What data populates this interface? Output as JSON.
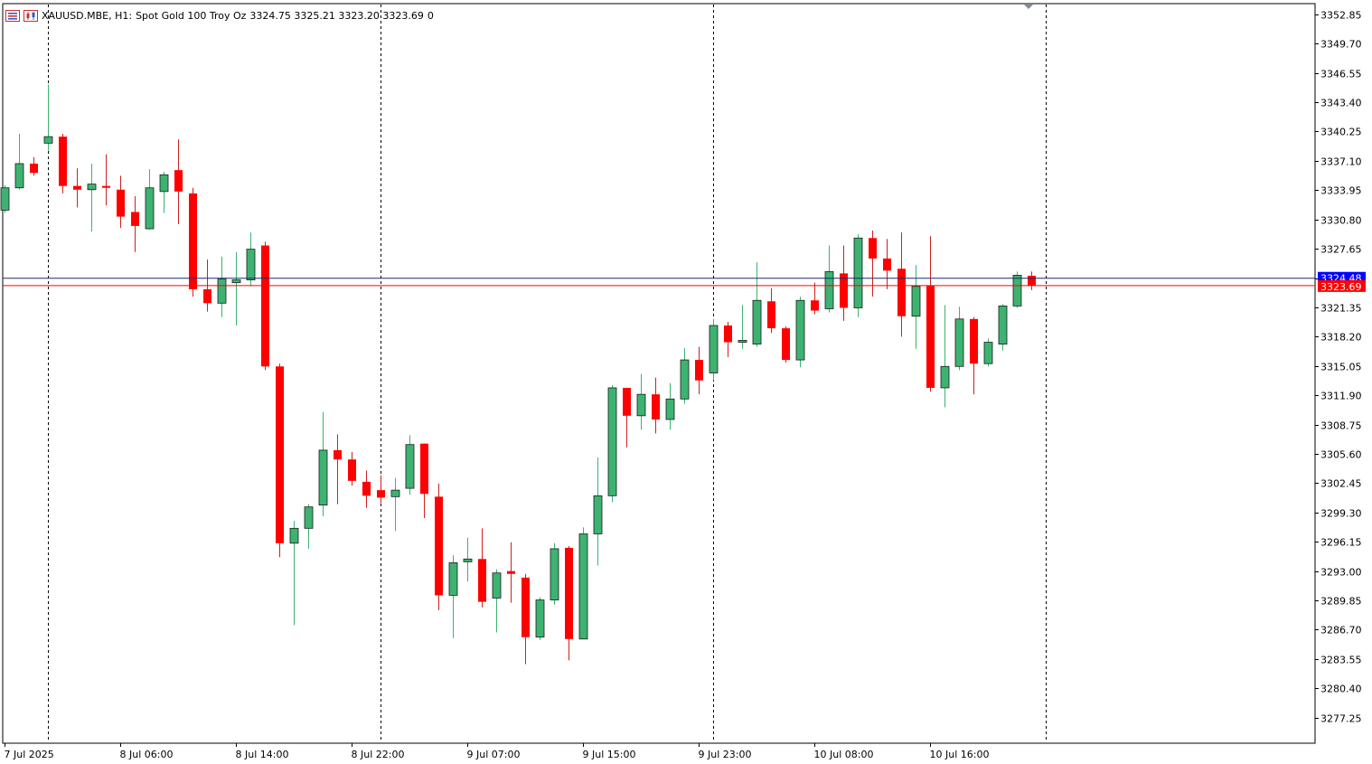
{
  "header": {
    "symbol": "XAUUSD.MBE, H1:",
    "description": "Spot Gold 100 Troy Oz",
    "ohlc": "3324.75 3325.21 3323.20 3323.69",
    "volume": "0"
  },
  "colors": {
    "bull": "#3cb371",
    "bear": "#ff0000",
    "bull_wick": "#3cb371",
    "bear_wick": "#d11f1f",
    "ask_line": "#1a2a6a",
    "bid_line": "#ff0000",
    "ask_tag": "#0000ff",
    "bid_tag": "#ff0000"
  },
  "chart_data": {
    "type": "candlestick",
    "y_axis": {
      "min": 3274.5,
      "max": 3354.0,
      "ticks": [
        "3352.85",
        "3349.70",
        "3346.55",
        "3343.40",
        "3340.25",
        "3337.10",
        "3333.95",
        "3330.80",
        "3327.65",
        "3324.50",
        "3321.35",
        "3318.20",
        "3315.05",
        "3311.90",
        "3308.75",
        "3305.60",
        "3302.45",
        "3299.30",
        "3296.15",
        "3293.00",
        "3289.85",
        "3286.70",
        "3283.55",
        "3280.40",
        "3277.25"
      ]
    },
    "x_axis": {
      "labels": [
        {
          "text": "7 Jul 2025",
          "index": 0
        },
        {
          "text": "8 Jul 06:00",
          "index": 8
        },
        {
          "text": "8 Jul 14:00",
          "index": 16
        },
        {
          "text": "8 Jul 22:00",
          "index": 24
        },
        {
          "text": "9 Jul 07:00",
          "index": 32
        },
        {
          "text": "9 Jul 15:00",
          "index": 40
        },
        {
          "text": "9 Jul 23:00",
          "index": 48
        },
        {
          "text": "10 Jul 08:00",
          "index": 56
        },
        {
          "text": "10 Jul 16:00",
          "index": 64
        }
      ],
      "period_separators": [
        3,
        26,
        49,
        72
      ]
    },
    "bid_price": "3323.69",
    "ask_price": "3324.48",
    "candles": [
      {
        "o": 3331.8,
        "h": 3334.5,
        "l": 3331.5,
        "c": 3334.2
      },
      {
        "o": 3334.2,
        "h": 3340.0,
        "l": 3334.0,
        "c": 3336.8
      },
      {
        "o": 3336.8,
        "h": 3337.5,
        "l": 3335.5,
        "c": 3335.8
      },
      {
        "o": 3339.0,
        "h": 3345.3,
        "l": 3338.2,
        "c": 3339.7
      },
      {
        "o": 3339.7,
        "h": 3340.0,
        "l": 3333.6,
        "c": 3334.4
      },
      {
        "o": 3334.4,
        "h": 3336.3,
        "l": 3332.1,
        "c": 3334.0
      },
      {
        "o": 3334.0,
        "h": 3336.8,
        "l": 3329.5,
        "c": 3334.6
      },
      {
        "o": 3334.4,
        "h": 3337.8,
        "l": 3332.3,
        "c": 3334.2
      },
      {
        "o": 3334.0,
        "h": 3335.5,
        "l": 3329.9,
        "c": 3331.1
      },
      {
        "o": 3331.6,
        "h": 3333.3,
        "l": 3327.3,
        "c": 3330.1
      },
      {
        "o": 3329.8,
        "h": 3336.2,
        "l": 3329.7,
        "c": 3334.2
      },
      {
        "o": 3333.8,
        "h": 3335.9,
        "l": 3331.5,
        "c": 3335.6
      },
      {
        "o": 3336.1,
        "h": 3339.4,
        "l": 3330.3,
        "c": 3333.8
      },
      {
        "o": 3333.6,
        "h": 3334.2,
        "l": 3322.5,
        "c": 3323.3
      },
      {
        "o": 3323.3,
        "h": 3326.5,
        "l": 3320.9,
        "c": 3321.8
      },
      {
        "o": 3321.8,
        "h": 3326.8,
        "l": 3320.3,
        "c": 3324.4
      },
      {
        "o": 3324.0,
        "h": 3327.3,
        "l": 3319.4,
        "c": 3324.3
      },
      {
        "o": 3324.3,
        "h": 3329.4,
        "l": 3323.6,
        "c": 3327.6
      },
      {
        "o": 3328.0,
        "h": 3328.4,
        "l": 3314.6,
        "c": 3315.0
      },
      {
        "o": 3315.0,
        "h": 3315.3,
        "l": 3294.5,
        "c": 3296.0
      },
      {
        "o": 3296.0,
        "h": 3298.4,
        "l": 3287.2,
        "c": 3297.6
      },
      {
        "o": 3297.6,
        "h": 3300.2,
        "l": 3295.4,
        "c": 3299.9
      },
      {
        "o": 3300.1,
        "h": 3310.1,
        "l": 3298.9,
        "c": 3306.0
      },
      {
        "o": 3306.0,
        "h": 3307.7,
        "l": 3300.2,
        "c": 3305.0
      },
      {
        "o": 3305.0,
        "h": 3305.8,
        "l": 3302.2,
        "c": 3302.7
      },
      {
        "o": 3302.6,
        "h": 3303.8,
        "l": 3299.8,
        "c": 3301.1
      },
      {
        "o": 3301.7,
        "h": 3303.3,
        "l": 3300.3,
        "c": 3300.9
      },
      {
        "o": 3301.0,
        "h": 3303.0,
        "l": 3297.3,
        "c": 3301.7
      },
      {
        "o": 3301.9,
        "h": 3307.6,
        "l": 3301.2,
        "c": 3306.6
      },
      {
        "o": 3306.7,
        "h": 3306.7,
        "l": 3298.7,
        "c": 3301.3
      },
      {
        "o": 3301.0,
        "h": 3302.4,
        "l": 3288.8,
        "c": 3290.4
      },
      {
        "o": 3290.4,
        "h": 3294.7,
        "l": 3285.8,
        "c": 3293.9
      },
      {
        "o": 3294.0,
        "h": 3296.6,
        "l": 3291.9,
        "c": 3294.3
      },
      {
        "o": 3294.3,
        "h": 3297.6,
        "l": 3289.1,
        "c": 3289.7
      },
      {
        "o": 3290.1,
        "h": 3293.2,
        "l": 3286.4,
        "c": 3292.8
      },
      {
        "o": 3293.0,
        "h": 3296.1,
        "l": 3289.6,
        "c": 3292.7
      },
      {
        "o": 3292.3,
        "h": 3292.7,
        "l": 3283.0,
        "c": 3285.9
      },
      {
        "o": 3285.9,
        "h": 3290.2,
        "l": 3285.6,
        "c": 3289.9
      },
      {
        "o": 3289.9,
        "h": 3296.0,
        "l": 3289.4,
        "c": 3295.4
      },
      {
        "o": 3295.5,
        "h": 3295.7,
        "l": 3283.4,
        "c": 3285.7
      },
      {
        "o": 3285.7,
        "h": 3297.7,
        "l": 3285.7,
        "c": 3297.0
      },
      {
        "o": 3297.0,
        "h": 3305.2,
        "l": 3293.6,
        "c": 3301.1
      },
      {
        "o": 3301.1,
        "h": 3313.0,
        "l": 3300.4,
        "c": 3312.7
      },
      {
        "o": 3312.7,
        "h": 3312.7,
        "l": 3306.3,
        "c": 3309.7
      },
      {
        "o": 3309.7,
        "h": 3314.2,
        "l": 3308.2,
        "c": 3312.0
      },
      {
        "o": 3312.0,
        "h": 3313.8,
        "l": 3307.8,
        "c": 3309.3
      },
      {
        "o": 3309.3,
        "h": 3313.2,
        "l": 3308.2,
        "c": 3311.5
      },
      {
        "o": 3311.5,
        "h": 3317.0,
        "l": 3311.0,
        "c": 3315.7
      },
      {
        "o": 3315.7,
        "h": 3317.1,
        "l": 3312.0,
        "c": 3313.5
      },
      {
        "o": 3314.3,
        "h": 3320.1,
        "l": 3313.5,
        "c": 3319.4
      },
      {
        "o": 3319.4,
        "h": 3319.8,
        "l": 3316.0,
        "c": 3317.6
      },
      {
        "o": 3317.6,
        "h": 3321.6,
        "l": 3316.9,
        "c": 3317.8
      },
      {
        "o": 3317.4,
        "h": 3326.2,
        "l": 3317.1,
        "c": 3322.1
      },
      {
        "o": 3322.0,
        "h": 3323.4,
        "l": 3318.6,
        "c": 3319.1
      },
      {
        "o": 3319.1,
        "h": 3319.3,
        "l": 3315.4,
        "c": 3315.7
      },
      {
        "o": 3315.7,
        "h": 3322.5,
        "l": 3314.9,
        "c": 3322.1
      },
      {
        "o": 3322.1,
        "h": 3324.0,
        "l": 3320.6,
        "c": 3321.0
      },
      {
        "o": 3321.2,
        "h": 3328.0,
        "l": 3320.8,
        "c": 3325.2
      },
      {
        "o": 3325.0,
        "h": 3328.0,
        "l": 3319.9,
        "c": 3321.3
      },
      {
        "o": 3321.3,
        "h": 3329.2,
        "l": 3320.3,
        "c": 3328.8
      },
      {
        "o": 3328.8,
        "h": 3329.6,
        "l": 3322.5,
        "c": 3326.6
      },
      {
        "o": 3326.6,
        "h": 3328.7,
        "l": 3323.3,
        "c": 3325.3
      },
      {
        "o": 3325.5,
        "h": 3329.4,
        "l": 3318.2,
        "c": 3320.4
      },
      {
        "o": 3320.4,
        "h": 3325.9,
        "l": 3316.9,
        "c": 3323.6
      },
      {
        "o": 3323.7,
        "h": 3329.0,
        "l": 3312.3,
        "c": 3312.7
      },
      {
        "o": 3312.7,
        "h": 3321.6,
        "l": 3310.6,
        "c": 3315.0
      },
      {
        "o": 3315.0,
        "h": 3321.4,
        "l": 3314.6,
        "c": 3320.1
      },
      {
        "o": 3320.1,
        "h": 3320.3,
        "l": 3312.0,
        "c": 3315.3
      },
      {
        "o": 3315.3,
        "h": 3318.0,
        "l": 3315.0,
        "c": 3317.6
      },
      {
        "o": 3317.4,
        "h": 3321.7,
        "l": 3316.7,
        "c": 3321.5
      },
      {
        "o": 3321.5,
        "h": 3325.2,
        "l": 3321.3,
        "c": 3324.8
      },
      {
        "o": 3324.75,
        "h": 3325.21,
        "l": 3323.2,
        "c": 3323.69
      }
    ]
  }
}
